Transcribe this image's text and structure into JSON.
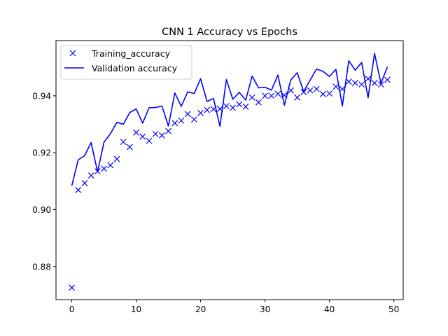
{
  "chart_data": {
    "type": "line",
    "title": "CNN 1 Accuracy vs Epochs",
    "xlabel": "",
    "ylabel": "",
    "xlim": [
      -2.45,
      51.45
    ],
    "ylim": [
      0.8684,
      0.9594
    ],
    "xticks": [
      0,
      10,
      20,
      30,
      40,
      50
    ],
    "yticks": [
      0.88,
      0.9,
      0.92,
      0.94
    ],
    "ytick_labels": [
      "0.88",
      "0.90",
      "0.92",
      "0.94"
    ],
    "grid": false,
    "legend_position": "top-left",
    "series": [
      {
        "name": "Training_accuracy",
        "style": "x-markers",
        "color": "#0000ff",
        "x": [
          0,
          1,
          2,
          3,
          4,
          5,
          6,
          7,
          8,
          9,
          10,
          11,
          12,
          13,
          14,
          15,
          16,
          17,
          18,
          19,
          20,
          21,
          22,
          23,
          24,
          25,
          26,
          27,
          28,
          29,
          30,
          31,
          32,
          33,
          34,
          35,
          36,
          37,
          38,
          39,
          40,
          41,
          42,
          43,
          44,
          45,
          46,
          47,
          48,
          49
        ],
        "values": [
          0.8726,
          0.9069,
          0.9093,
          0.912,
          0.9135,
          0.9144,
          0.9156,
          0.9178,
          0.9238,
          0.922,
          0.9271,
          0.9257,
          0.9242,
          0.9266,
          0.9261,
          0.9276,
          0.9304,
          0.9313,
          0.9336,
          0.9317,
          0.934,
          0.935,
          0.9353,
          0.9354,
          0.9364,
          0.9358,
          0.937,
          0.9362,
          0.9394,
          0.9377,
          0.94,
          0.94,
          0.9407,
          0.9402,
          0.9419,
          0.9394,
          0.9413,
          0.9419,
          0.9424,
          0.9406,
          0.9408,
          0.9432,
          0.9424,
          0.945,
          0.9445,
          0.944,
          0.946,
          0.9445,
          0.944,
          0.9456
        ]
      },
      {
        "name": "Validation accuracy",
        "style": "line",
        "color": "#0000ff",
        "x": [
          0,
          1,
          2,
          3,
          4,
          5,
          6,
          7,
          8,
          9,
          10,
          11,
          12,
          13,
          14,
          15,
          16,
          17,
          18,
          19,
          20,
          21,
          22,
          23,
          24,
          25,
          26,
          27,
          28,
          29,
          30,
          31,
          32,
          33,
          34,
          35,
          36,
          37,
          38,
          39,
          40,
          41,
          42,
          43,
          44,
          45,
          46,
          47,
          48,
          49
        ],
        "values": [
          0.9084,
          0.9175,
          0.919,
          0.9236,
          0.9133,
          0.9237,
          0.9267,
          0.9307,
          0.93,
          0.9341,
          0.9354,
          0.9304,
          0.9358,
          0.9359,
          0.9364,
          0.9294,
          0.941,
          0.9363,
          0.9414,
          0.9408,
          0.946,
          0.938,
          0.9391,
          0.9293,
          0.9457,
          0.9388,
          0.9412,
          0.9385,
          0.9469,
          0.9428,
          0.943,
          0.942,
          0.9473,
          0.9367,
          0.9456,
          0.9481,
          0.9415,
          0.9455,
          0.9494,
          0.9486,
          0.9468,
          0.9493,
          0.9364,
          0.9523,
          0.949,
          0.9517,
          0.9393,
          0.9549,
          0.9444,
          0.9502
        ]
      }
    ]
  }
}
